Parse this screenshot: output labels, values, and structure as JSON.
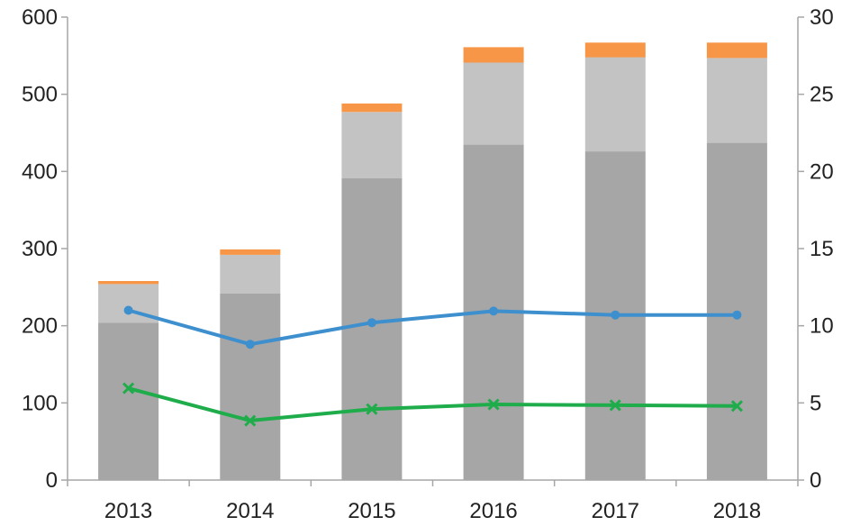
{
  "chart_data": {
    "type": "bar",
    "stacked": true,
    "categories": [
      "2013",
      "2014",
      "2015",
      "2016",
      "2017",
      "2018"
    ],
    "series": [
      {
        "axis": "left",
        "kind": "bar",
        "color": "#a6a6a6",
        "values": [
          204,
          242,
          391,
          435,
          426,
          437
        ]
      },
      {
        "axis": "left",
        "kind": "bar",
        "color": "#c3c3c3",
        "values": [
          50,
          50,
          86,
          106,
          122,
          110
        ]
      },
      {
        "axis": "left",
        "kind": "bar",
        "color": "#f79646",
        "values": [
          4,
          7,
          11,
          20,
          19,
          20
        ]
      },
      {
        "axis": "right",
        "kind": "line",
        "marker": "circle",
        "color": "#3d8fce",
        "values": [
          11.0,
          8.8,
          10.2,
          10.95,
          10.7,
          10.7
        ]
      },
      {
        "axis": "right",
        "kind": "line",
        "marker": "x",
        "color": "#1fad4b",
        "values": [
          5.95,
          3.85,
          4.6,
          4.9,
          4.85,
          4.8
        ]
      }
    ],
    "y_left": {
      "min": 0,
      "max": 600,
      "ticks": [
        0,
        100,
        200,
        300,
        400,
        500,
        600
      ]
    },
    "y_right": {
      "min": 0,
      "max": 30,
      "ticks": [
        0,
        5,
        10,
        15,
        20,
        25,
        30
      ]
    },
    "title": "",
    "xlabel": "",
    "ylabel": "",
    "grid": false,
    "legend": "none"
  }
}
